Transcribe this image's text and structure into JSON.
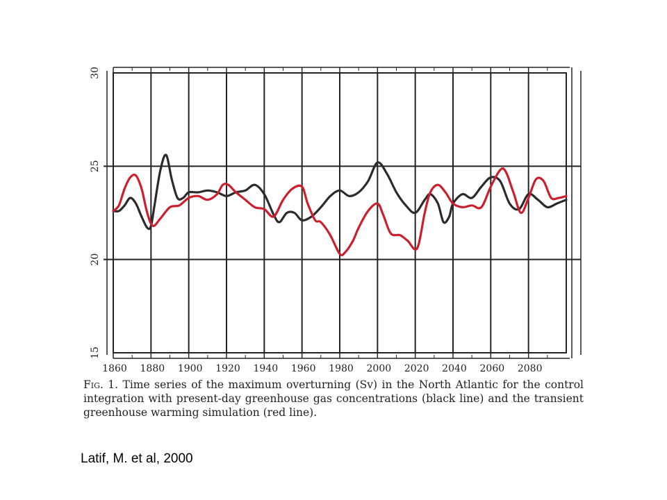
{
  "caption": {
    "fig_label": "Fig. 1.",
    "text": "Time series of the maximum overturning (Sv) in the North Atlantic for the control integration with present-day greenhouse gas concentrations (black line) and the transient greenhouse warming simulation (red line)."
  },
  "credit": "Latif, M. et al, 2000",
  "chart_data": {
    "type": "line",
    "title": "",
    "xlabel": "",
    "ylabel": "",
    "xlim": [
      1860,
      2100
    ],
    "ylim": [
      15,
      30
    ],
    "x_ticks": [
      1860,
      1880,
      1900,
      1920,
      1940,
      1960,
      1980,
      2000,
      2020,
      2040,
      2060,
      2080
    ],
    "y_ticks": [
      15,
      20,
      25,
      30
    ],
    "grid": true,
    "colors": {
      "control": "#2b2b2b",
      "warming": "#cc1f2e"
    },
    "series": [
      {
        "x": [
          1860,
          1863,
          1866,
          1869,
          1872,
          1875,
          1878,
          1880,
          1882,
          1885,
          1888,
          1891,
          1894,
          1897,
          1900,
          1905,
          1910,
          1915,
          1920,
          1925,
          1930,
          1935,
          1940,
          1945,
          1948,
          1952,
          1956,
          1960,
          1965,
          1970,
          1975,
          1980,
          1985,
          1990,
          1995,
          2000,
          2005,
          2010,
          2015,
          2020,
          2025,
          2028,
          2032,
          2035,
          2038,
          2040,
          2045,
          2050,
          2055,
          2060,
          2065,
          2070,
          2075,
          2080,
          2085,
          2090,
          2095,
          2100
        ],
        "y": [
          22.6,
          22.6,
          22.9,
          23.3,
          23.0,
          22.3,
          21.7,
          21.8,
          23.0,
          24.8,
          25.6,
          24.3,
          23.3,
          23.3,
          23.6,
          23.6,
          23.7,
          23.6,
          23.4,
          23.6,
          23.7,
          24.0,
          23.5,
          22.4,
          22.0,
          22.5,
          22.5,
          22.1,
          22.3,
          22.8,
          23.4,
          23.7,
          23.4,
          23.6,
          24.2,
          25.2,
          24.6,
          23.6,
          22.9,
          22.5,
          23.2,
          23.5,
          23.0,
          22.0,
          22.3,
          23.0,
          23.5,
          23.3,
          23.9,
          24.4,
          24.2,
          23.0,
          22.7,
          23.5,
          23.2,
          22.8,
          23.0,
          23.2
        ]
      },
      {
        "x": [
          1860,
          1863,
          1866,
          1869,
          1872,
          1875,
          1878,
          1881,
          1885,
          1890,
          1895,
          1900,
          1905,
          1910,
          1915,
          1918,
          1921,
          1925,
          1930,
          1935,
          1940,
          1945,
          1950,
          1955,
          1960,
          1963,
          1967,
          1970,
          1975,
          1980,
          1983,
          1987,
          1990,
          1995,
          2000,
          2003,
          2007,
          2012,
          2016,
          2021,
          2025,
          2028,
          2032,
          2036,
          2040,
          2045,
          2050,
          2055,
          2060,
          2065,
          2068,
          2072,
          2076,
          2080,
          2084,
          2088,
          2092,
          2096,
          2100
        ],
        "y": [
          22.6,
          22.9,
          23.8,
          24.4,
          24.5,
          23.8,
          22.5,
          21.8,
          22.2,
          22.8,
          22.9,
          23.3,
          23.4,
          23.2,
          23.5,
          24.0,
          24.0,
          23.6,
          23.2,
          22.8,
          22.7,
          22.3,
          23.2,
          23.8,
          23.9,
          23.0,
          22.1,
          22.0,
          21.3,
          20.3,
          20.4,
          21.0,
          21.7,
          22.6,
          23.0,
          22.4,
          21.4,
          21.3,
          21.0,
          20.6,
          22.5,
          23.6,
          24.0,
          23.6,
          23.0,
          22.8,
          22.9,
          22.8,
          23.9,
          24.8,
          24.7,
          23.6,
          22.5,
          23.3,
          24.3,
          24.2,
          23.3,
          23.3,
          23.4
        ]
      }
    ]
  }
}
